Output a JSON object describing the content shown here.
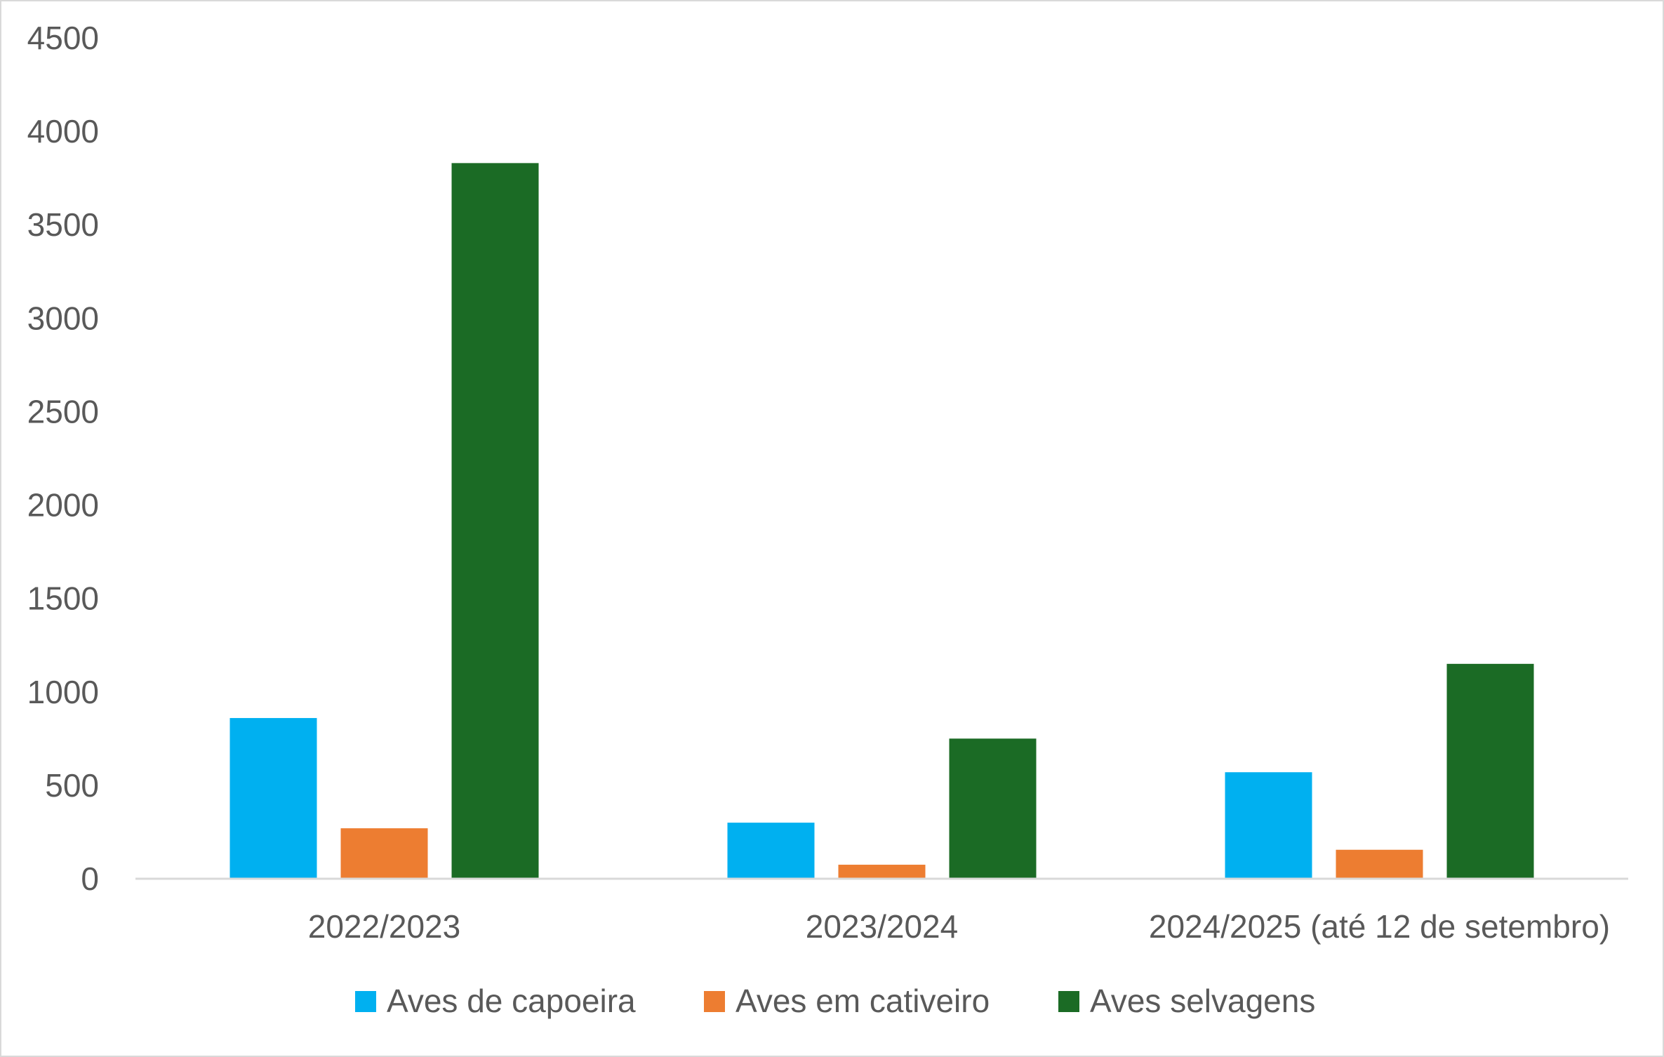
{
  "chart_data": {
    "type": "bar",
    "title": "",
    "xlabel": "",
    "ylabel": "",
    "ylim": [
      0,
      4500
    ],
    "yticks": [
      "0",
      "500",
      "1000",
      "1500",
      "2000",
      "2500",
      "3000",
      "3500",
      "4000",
      "4500"
    ],
    "grid": false,
    "legend_position": "bottom",
    "categories": [
      "2022/2023",
      "2023/2024",
      "2024/2025 (até 12 de setembro)"
    ],
    "series": [
      {
        "name": "Aves de capoeira",
        "color": "#00b0f0",
        "values": [
          860,
          300,
          570
        ]
      },
      {
        "name": "Aves em cativeiro",
        "color": "#ed7d31",
        "values": [
          270,
          75,
          155
        ]
      },
      {
        "name": "Aves selvagens",
        "color": "#1b6b25",
        "values": [
          3830,
          750,
          1150
        ]
      }
    ]
  }
}
